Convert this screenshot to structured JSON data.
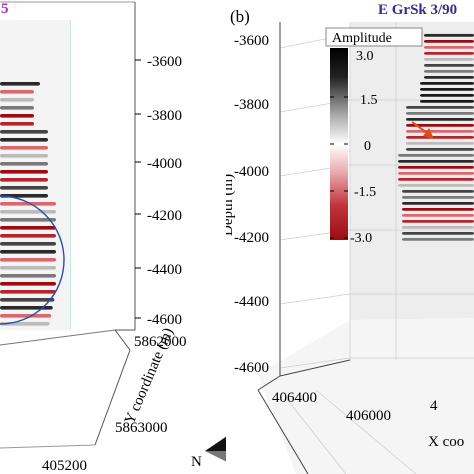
{
  "panel_a": {
    "title_fragment": "5",
    "title_color": "#b030c8",
    "depth_ticks": [
      "-3600",
      "-3800",
      "-4000",
      "-4200",
      "-4400",
      "-4600"
    ],
    "y_axis_ticks": [
      "5862000",
      "5863000"
    ],
    "y_axis_label": "Y coordinate (m)",
    "x_axis_ticks": [
      "405200"
    ],
    "north_label": "N",
    "circle_color": "#2c4fa8"
  },
  "panel_b": {
    "label": "(b)",
    "title": "E GrSk 3/90",
    "title_color": "#3a2a8a",
    "depth_label": "Depth (m)",
    "depth_ticks": [
      "-3600",
      "-3800",
      "-4000",
      "-4200",
      "-4400",
      "-4600"
    ],
    "x_axis_ticks": [
      "406400",
      "406000"
    ],
    "x_axis_label_fragment": "X coo",
    "x_axis_tick_fragment": "4",
    "arrow_color": "#e04a1a",
    "colorbar": {
      "title": "Amplitude",
      "ticks": [
        "3.0",
        "1.5",
        "0",
        "-1.5",
        "-3.0"
      ],
      "colors": [
        "#000000",
        "#ffffff",
        "#9b0c12"
      ]
    }
  }
}
